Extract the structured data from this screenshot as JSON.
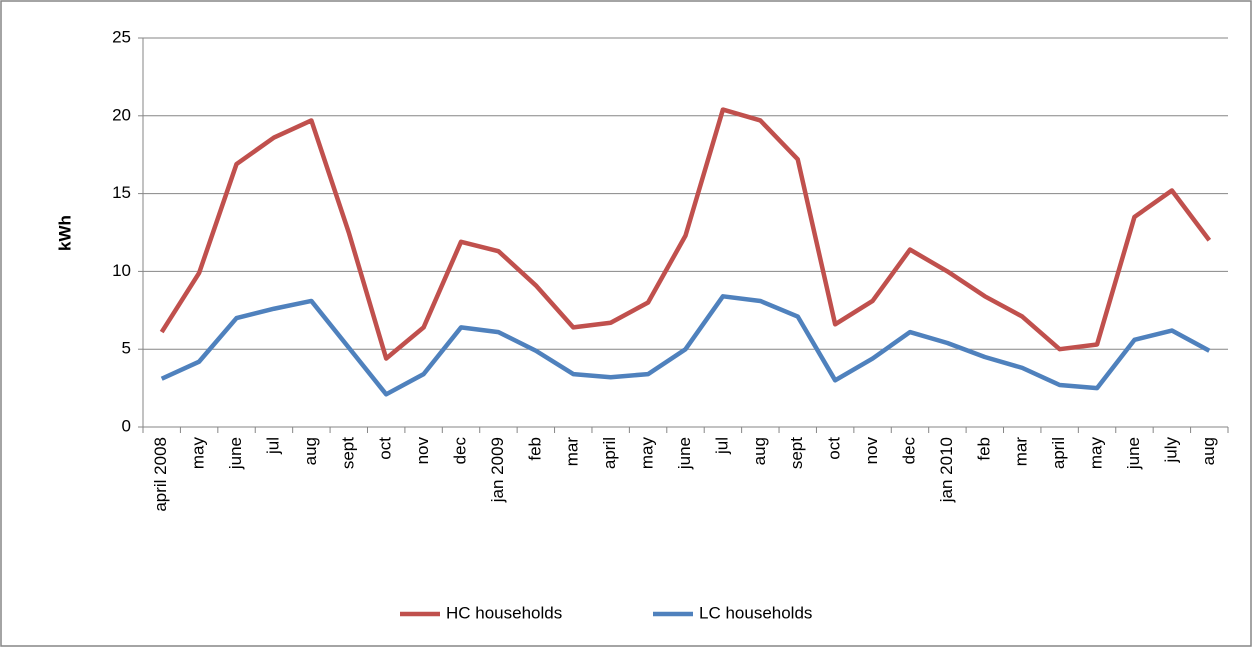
{
  "chart_data": {
    "type": "line",
    "y_label": "kWh",
    "categories": [
      "april 2008",
      "may",
      "june",
      "jul",
      "aug",
      "sept",
      "oct",
      "nov",
      "dec",
      "jan 2009",
      "feb",
      "mar",
      "april",
      "may",
      "june",
      "jul",
      "aug",
      "sept",
      "oct",
      "nov",
      "dec",
      "jan 2010",
      "feb",
      "mar",
      "april",
      "may",
      "june",
      "july",
      "aug"
    ],
    "series": [
      {
        "name": "HC households",
        "color": "#c0504d",
        "values": [
          6.1,
          9.9,
          16.9,
          18.6,
          19.7,
          12.5,
          4.4,
          6.4,
          11.9,
          11.3,
          9.1,
          6.4,
          6.7,
          8.0,
          12.3,
          20.4,
          19.7,
          17.2,
          6.6,
          8.1,
          11.4,
          10.0,
          8.4,
          7.1,
          5.0,
          5.3,
          13.5,
          15.2,
          12.0
        ]
      },
      {
        "name": "LC households",
        "color": "#4f81bd",
        "values": [
          3.1,
          4.2,
          7.0,
          7.6,
          8.1,
          5.1,
          2.1,
          3.4,
          6.4,
          6.1,
          4.9,
          3.4,
          3.2,
          3.4,
          5.0,
          8.4,
          8.1,
          7.1,
          3.0,
          4.4,
          6.1,
          5.4,
          4.5,
          3.8,
          2.7,
          2.5,
          5.6,
          6.2,
          4.9
        ]
      }
    ],
    "ylim": [
      0,
      25
    ],
    "yticks": [
      0,
      5,
      10,
      15,
      20,
      25
    ],
    "grid": true,
    "legend": "bottom"
  }
}
